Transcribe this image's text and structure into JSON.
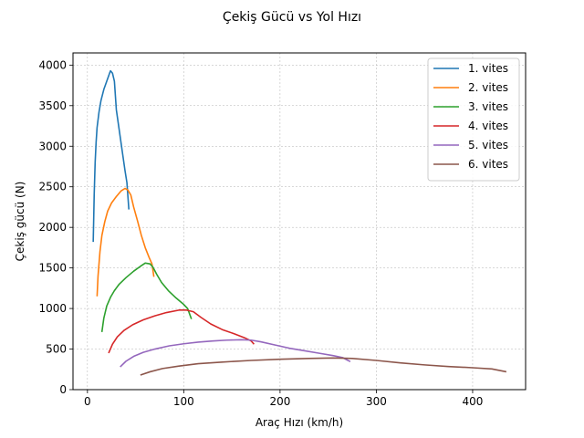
{
  "chart_data": {
    "type": "line",
    "title": "Çekiş Gücü vs Yol Hızı",
    "xlabel": "Araç Hızı (km/h)",
    "ylabel": "Çekiş gücü (N)",
    "xlim": [
      -15,
      455
    ],
    "ylim": [
      0,
      4150
    ],
    "xticks": [
      0,
      100,
      200,
      300,
      400
    ],
    "yticks": [
      0,
      500,
      1000,
      1500,
      2000,
      2500,
      3000,
      3500,
      4000
    ],
    "grid": true,
    "legend_position": "top-right",
    "series": [
      {
        "name": "1. vites",
        "color": "#1f77b4",
        "x": [
          6,
          7,
          8,
          9,
          10,
          12,
          14,
          17,
          20,
          23,
          24,
          26,
          28,
          30,
          33,
          36,
          39,
          41,
          43
        ],
        "y": [
          1820,
          2400,
          2800,
          3050,
          3230,
          3420,
          3560,
          3700,
          3800,
          3900,
          3930,
          3900,
          3800,
          3450,
          3200,
          2950,
          2700,
          2550,
          2220
        ]
      },
      {
        "name": "2. vites",
        "color": "#ff7f0e",
        "x": [
          10,
          11,
          13,
          15,
          18,
          21,
          25,
          30,
          35,
          39,
          42,
          45,
          48,
          52,
          56,
          60,
          64,
          67,
          69
        ],
        "y": [
          1150,
          1400,
          1700,
          1900,
          2070,
          2200,
          2300,
          2380,
          2450,
          2480,
          2460,
          2400,
          2250,
          2080,
          1900,
          1750,
          1630,
          1550,
          1390
        ]
      },
      {
        "name": "3. vites",
        "color": "#2ca02c",
        "x": [
          15,
          17,
          20,
          24,
          28,
          33,
          40,
          48,
          55,
          60,
          65,
          68,
          72,
          77,
          84,
          92,
          100,
          104,
          108
        ],
        "y": [
          710,
          880,
          1030,
          1140,
          1220,
          1300,
          1380,
          1460,
          1520,
          1560,
          1550,
          1510,
          1420,
          1320,
          1220,
          1130,
          1050,
          1000,
          870
        ]
      },
      {
        "name": "4. vites",
        "color": "#d62728",
        "x": [
          22,
          26,
          31,
          38,
          47,
          58,
          70,
          82,
          95,
          103,
          110,
          118,
          128,
          140,
          152,
          163,
          170,
          173
        ],
        "y": [
          450,
          560,
          650,
          730,
          800,
          860,
          910,
          950,
          980,
          980,
          960,
          890,
          810,
          740,
          690,
          640,
          600,
          560
        ]
      },
      {
        "name": "5. vites",
        "color": "#9467bd",
        "x": [
          34,
          40,
          48,
          58,
          70,
          85,
          100,
          115,
          130,
          145,
          160,
          170,
          180,
          195,
          210,
          225,
          240,
          255,
          265,
          273
        ],
        "y": [
          280,
          350,
          410,
          460,
          500,
          540,
          565,
          585,
          600,
          610,
          615,
          610,
          590,
          550,
          510,
          480,
          450,
          420,
          395,
          345
        ]
      },
      {
        "name": "6. vites",
        "color": "#8c564b",
        "x": [
          55,
          65,
          78,
          95,
          115,
          140,
          170,
          200,
          230,
          255,
          275,
          300,
          325,
          350,
          375,
          400,
          420,
          435
        ],
        "y": [
          180,
          220,
          260,
          290,
          320,
          340,
          360,
          375,
          385,
          390,
          385,
          360,
          330,
          305,
          285,
          270,
          255,
          220
        ]
      }
    ]
  }
}
